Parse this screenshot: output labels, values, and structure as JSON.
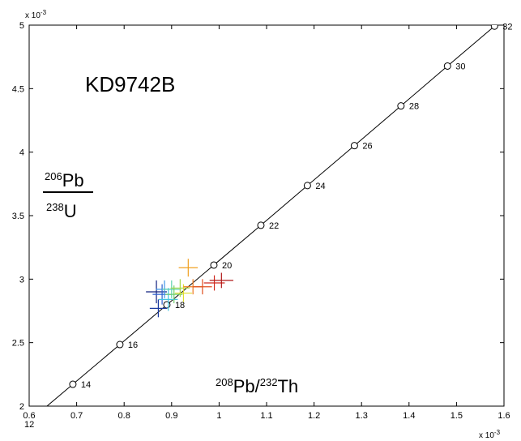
{
  "chart_data": {
    "type": "scatter",
    "title": "KD9742B",
    "xlabel": {
      "sup1": "208",
      "base1": "Pb/",
      "sup2": "232",
      "base2": "Th"
    },
    "ylabel": {
      "numerator_sup": "206",
      "numerator": "Pb",
      "denominator_sup": "238",
      "denominator": "U"
    },
    "x_multiplier": {
      "base": "x 10",
      "exp": "-3"
    },
    "y_multiplier": {
      "base": "x 10",
      "exp": "-3"
    },
    "xlim": [
      0.6,
      1.6
    ],
    "ylim": [
      2.0,
      5.0
    ],
    "x_ticks": [
      "0.6",
      "0.7",
      "0.8",
      "0.9",
      "1",
      "1.1",
      "1.2",
      "1.3",
      "1.4",
      "1.5",
      "1.6"
    ],
    "y_ticks": [
      "2",
      "2.5",
      "3",
      "3.5",
      "4",
      "4.5",
      "5"
    ],
    "concordia": {
      "points": [
        {
          "x": 0.593,
          "y": 1.86,
          "label": "12"
        },
        {
          "x": 0.692,
          "y": 2.172,
          "label": "14"
        },
        {
          "x": 0.791,
          "y": 2.485,
          "label": "16"
        },
        {
          "x": 0.89,
          "y": 2.798,
          "label": "18"
        },
        {
          "x": 0.989,
          "y": 3.111,
          "label": "20"
        },
        {
          "x": 1.088,
          "y": 3.424,
          "label": "22"
        },
        {
          "x": 1.186,
          "y": 3.737,
          "label": "24"
        },
        {
          "x": 1.285,
          "y": 4.051,
          "label": "26"
        },
        {
          "x": 1.383,
          "y": 4.364,
          "label": "28"
        },
        {
          "x": 1.481,
          "y": 4.678,
          "label": "30"
        },
        {
          "x": 1.58,
          "y": 4.992,
          "label": "32"
        }
      ]
    },
    "measurements": [
      {
        "x": 0.868,
        "y": 2.9,
        "xerr": 0.022,
        "yerr": 0.09,
        "color": "#10207f"
      },
      {
        "x": 0.872,
        "y": 2.77,
        "xerr": 0.018,
        "yerr": 0.07,
        "color": "#1a3aa0"
      },
      {
        "x": 0.88,
        "y": 2.88,
        "xerr": 0.02,
        "yerr": 0.08,
        "color": "#2a5fcf"
      },
      {
        "x": 0.885,
        "y": 2.92,
        "xerr": 0.018,
        "yerr": 0.07,
        "color": "#3a95e8"
      },
      {
        "x": 0.893,
        "y": 2.84,
        "xerr": 0.02,
        "yerr": 0.09,
        "color": "#44c6e0"
      },
      {
        "x": 0.9,
        "y": 2.92,
        "xerr": 0.02,
        "yerr": 0.07,
        "color": "#5fd3b0"
      },
      {
        "x": 0.905,
        "y": 2.88,
        "xerr": 0.018,
        "yerr": 0.07,
        "color": "#6fcf6a"
      },
      {
        "x": 0.918,
        "y": 2.93,
        "xerr": 0.02,
        "yerr": 0.07,
        "color": "#a6d84a"
      },
      {
        "x": 0.925,
        "y": 2.89,
        "xerr": 0.018,
        "yerr": 0.07,
        "color": "#e0dc30"
      },
      {
        "x": 0.935,
        "y": 3.09,
        "xerr": 0.02,
        "yerr": 0.07,
        "color": "#f0a020"
      },
      {
        "x": 0.945,
        "y": 2.94,
        "xerr": 0.02,
        "yerr": 0.06,
        "color": "#ee7a20"
      },
      {
        "x": 0.965,
        "y": 2.94,
        "xerr": 0.02,
        "yerr": 0.06,
        "color": "#e05020"
      },
      {
        "x": 0.99,
        "y": 2.97,
        "xerr": 0.022,
        "yerr": 0.06,
        "color": "#d02a20"
      },
      {
        "x": 1.005,
        "y": 2.99,
        "xerr": 0.025,
        "yerr": 0.06,
        "color": "#b01818"
      }
    ]
  }
}
